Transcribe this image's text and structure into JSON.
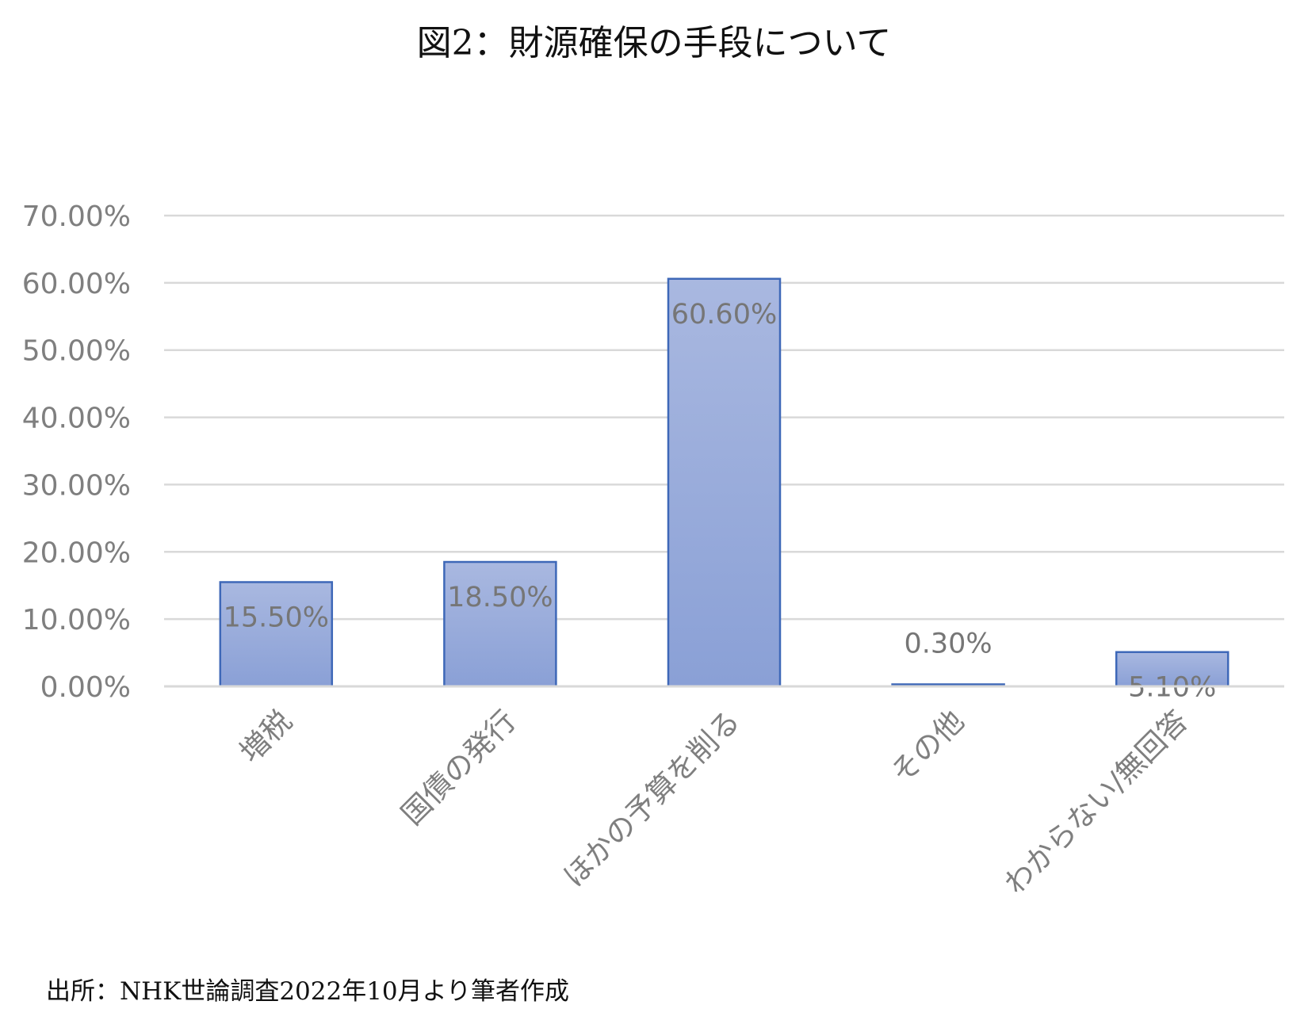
{
  "title": "図2：財源確保の手段について",
  "source": "出所：NHK世論調査2022年10月より筆者作成",
  "colors": {
    "bar_top": "#a9b8e0",
    "bar_bottom": "#8aa0d6",
    "bar_stroke": "#3e68b8",
    "grid": "#d9d9d9",
    "axis_text": "#7f7f7f",
    "label_text": "#767676"
  },
  "chart_data": {
    "type": "bar",
    "title": "図2：財源確保の手段について",
    "categories": [
      "増税",
      "国債の発行",
      "ほかの予算を削る",
      "その他",
      "わからない/無回答"
    ],
    "values": [
      15.5,
      18.5,
      60.6,
      0.3,
      5.1
    ],
    "data_labels": [
      "15.50%",
      "18.50%",
      "60.60%",
      "0.30%",
      "5.10%"
    ],
    "y_ticks": [
      "0.00%",
      "10.00%",
      "20.00%",
      "30.00%",
      "40.00%",
      "50.00%",
      "60.00%",
      "70.00%"
    ],
    "ylim": [
      0,
      70
    ],
    "grid": true,
    "legend": "none",
    "xlabel": "",
    "ylabel": ""
  }
}
